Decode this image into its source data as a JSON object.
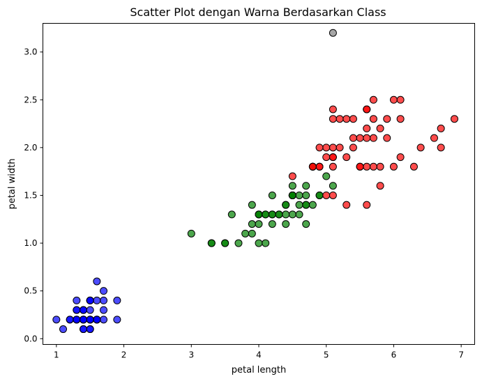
{
  "chart_data": {
    "type": "scatter",
    "title": "Scatter Plot dengan Warna Berdasarkan Class",
    "xlabel": "petal length",
    "ylabel": "petal width",
    "xlim": [
      0.8,
      7.2
    ],
    "ylim": [
      -0.06,
      3.3
    ],
    "xticks": [
      "1",
      "2",
      "3",
      "4",
      "5",
      "6",
      "7"
    ],
    "yticks": [
      "0.0",
      "0.5",
      "1.0",
      "1.5",
      "2.0",
      "2.5",
      "3.0"
    ],
    "grid": false,
    "series": [
      {
        "color": "#0000ff",
        "points": [
          [
            1.4,
            0.2
          ],
          [
            1.4,
            0.2
          ],
          [
            1.3,
            0.2
          ],
          [
            1.5,
            0.2
          ],
          [
            1.4,
            0.2
          ],
          [
            1.7,
            0.4
          ],
          [
            1.4,
            0.3
          ],
          [
            1.5,
            0.2
          ],
          [
            1.4,
            0.2
          ],
          [
            1.5,
            0.1
          ],
          [
            1.5,
            0.2
          ],
          [
            1.6,
            0.2
          ],
          [
            1.4,
            0.1
          ],
          [
            1.1,
            0.1
          ],
          [
            1.2,
            0.2
          ],
          [
            1.5,
            0.4
          ],
          [
            1.3,
            0.4
          ],
          [
            1.4,
            0.3
          ],
          [
            1.7,
            0.3
          ],
          [
            1.5,
            0.3
          ],
          [
            1.7,
            0.2
          ],
          [
            1.5,
            0.4
          ],
          [
            1.0,
            0.2
          ],
          [
            1.7,
            0.5
          ],
          [
            1.9,
            0.2
          ],
          [
            1.6,
            0.2
          ],
          [
            1.6,
            0.4
          ],
          [
            1.5,
            0.2
          ],
          [
            1.4,
            0.2
          ],
          [
            1.6,
            0.2
          ],
          [
            1.6,
            0.2
          ],
          [
            1.5,
            0.4
          ],
          [
            1.5,
            0.1
          ],
          [
            1.4,
            0.2
          ],
          [
            1.5,
            0.2
          ],
          [
            1.2,
            0.2
          ],
          [
            1.3,
            0.2
          ],
          [
            1.4,
            0.1
          ],
          [
            1.3,
            0.2
          ],
          [
            1.5,
            0.2
          ],
          [
            1.3,
            0.3
          ],
          [
            1.3,
            0.3
          ],
          [
            1.3,
            0.2
          ],
          [
            1.6,
            0.6
          ],
          [
            1.9,
            0.4
          ],
          [
            1.4,
            0.3
          ],
          [
            1.6,
            0.2
          ],
          [
            1.4,
            0.2
          ],
          [
            1.5,
            0.2
          ],
          [
            1.4,
            0.2
          ]
        ]
      },
      {
        "color": "#008000",
        "points": [
          [
            4.7,
            1.4
          ],
          [
            4.5,
            1.5
          ],
          [
            4.9,
            1.5
          ],
          [
            4.0,
            1.3
          ],
          [
            4.6,
            1.5
          ],
          [
            4.5,
            1.3
          ],
          [
            4.7,
            1.6
          ],
          [
            3.3,
            1.0
          ],
          [
            4.6,
            1.3
          ],
          [
            3.9,
            1.4
          ],
          [
            3.5,
            1.0
          ],
          [
            4.2,
            1.5
          ],
          [
            4.0,
            1.0
          ],
          [
            4.7,
            1.4
          ],
          [
            3.6,
            1.3
          ],
          [
            4.4,
            1.4
          ],
          [
            4.5,
            1.5
          ],
          [
            4.1,
            1.0
          ],
          [
            4.5,
            1.5
          ],
          [
            3.9,
            1.1
          ],
          [
            4.8,
            1.8
          ],
          [
            4.0,
            1.3
          ],
          [
            4.9,
            1.5
          ],
          [
            4.7,
            1.2
          ],
          [
            4.3,
            1.3
          ],
          [
            4.4,
            1.4
          ],
          [
            4.8,
            1.4
          ],
          [
            5.0,
            1.7
          ],
          [
            4.5,
            1.5
          ],
          [
            3.5,
            1.0
          ],
          [
            3.8,
            1.1
          ],
          [
            3.7,
            1.0
          ],
          [
            3.9,
            1.2
          ],
          [
            5.1,
            1.6
          ],
          [
            4.5,
            1.5
          ],
          [
            4.5,
            1.6
          ],
          [
            4.7,
            1.5
          ],
          [
            4.4,
            1.3
          ],
          [
            4.1,
            1.3
          ],
          [
            4.0,
            1.3
          ],
          [
            4.4,
            1.2
          ],
          [
            4.6,
            1.4
          ],
          [
            4.0,
            1.2
          ],
          [
            3.3,
            1.0
          ],
          [
            4.2,
            1.3
          ],
          [
            4.2,
            1.2
          ],
          [
            4.2,
            1.3
          ],
          [
            4.3,
            1.3
          ],
          [
            3.0,
            1.1
          ],
          [
            4.1,
            1.3
          ]
        ]
      },
      {
        "color": "#ff0000",
        "points": [
          [
            6.0,
            2.5
          ],
          [
            5.1,
            1.9
          ],
          [
            5.9,
            2.1
          ],
          [
            5.6,
            1.8
          ],
          [
            5.8,
            2.2
          ],
          [
            6.6,
            2.1
          ],
          [
            4.5,
            1.7
          ],
          [
            6.3,
            1.8
          ],
          [
            5.8,
            1.8
          ],
          [
            6.1,
            2.5
          ],
          [
            5.1,
            2.0
          ],
          [
            5.3,
            1.9
          ],
          [
            5.5,
            2.1
          ],
          [
            5.0,
            2.0
          ],
          [
            5.1,
            2.4
          ],
          [
            5.3,
            2.3
          ],
          [
            5.5,
            1.8
          ],
          [
            6.7,
            2.2
          ],
          [
            6.9,
            2.3
          ],
          [
            5.0,
            1.5
          ],
          [
            5.7,
            2.3
          ],
          [
            4.9,
            2.0
          ],
          [
            6.7,
            2.0
          ],
          [
            4.9,
            1.8
          ],
          [
            5.7,
            2.1
          ],
          [
            6.0,
            1.8
          ],
          [
            4.8,
            1.8
          ],
          [
            4.9,
            1.8
          ],
          [
            5.6,
            2.1
          ],
          [
            5.8,
            1.6
          ],
          [
            6.1,
            1.9
          ],
          [
            6.4,
            2.0
          ],
          [
            5.6,
            2.2
          ],
          [
            5.1,
            1.5
          ],
          [
            5.6,
            1.4
          ],
          [
            6.1,
            2.3
          ],
          [
            5.6,
            2.4
          ],
          [
            5.5,
            1.8
          ],
          [
            4.8,
            1.8
          ],
          [
            5.4,
            2.1
          ],
          [
            5.6,
            2.4
          ],
          [
            5.1,
            2.3
          ],
          [
            5.1,
            1.9
          ],
          [
            5.9,
            2.3
          ],
          [
            5.7,
            2.5
          ],
          [
            5.2,
            2.3
          ],
          [
            5.0,
            1.9
          ],
          [
            5.2,
            2.0
          ],
          [
            5.4,
            2.3
          ],
          [
            5.1,
            1.8
          ],
          [
            5.3,
            1.4
          ],
          [
            5.7,
            1.8
          ],
          [
            5.4,
            2.0
          ]
        ]
      },
      {
        "color": "#808080",
        "points": [
          [
            5.1,
            3.2
          ]
        ]
      }
    ]
  }
}
